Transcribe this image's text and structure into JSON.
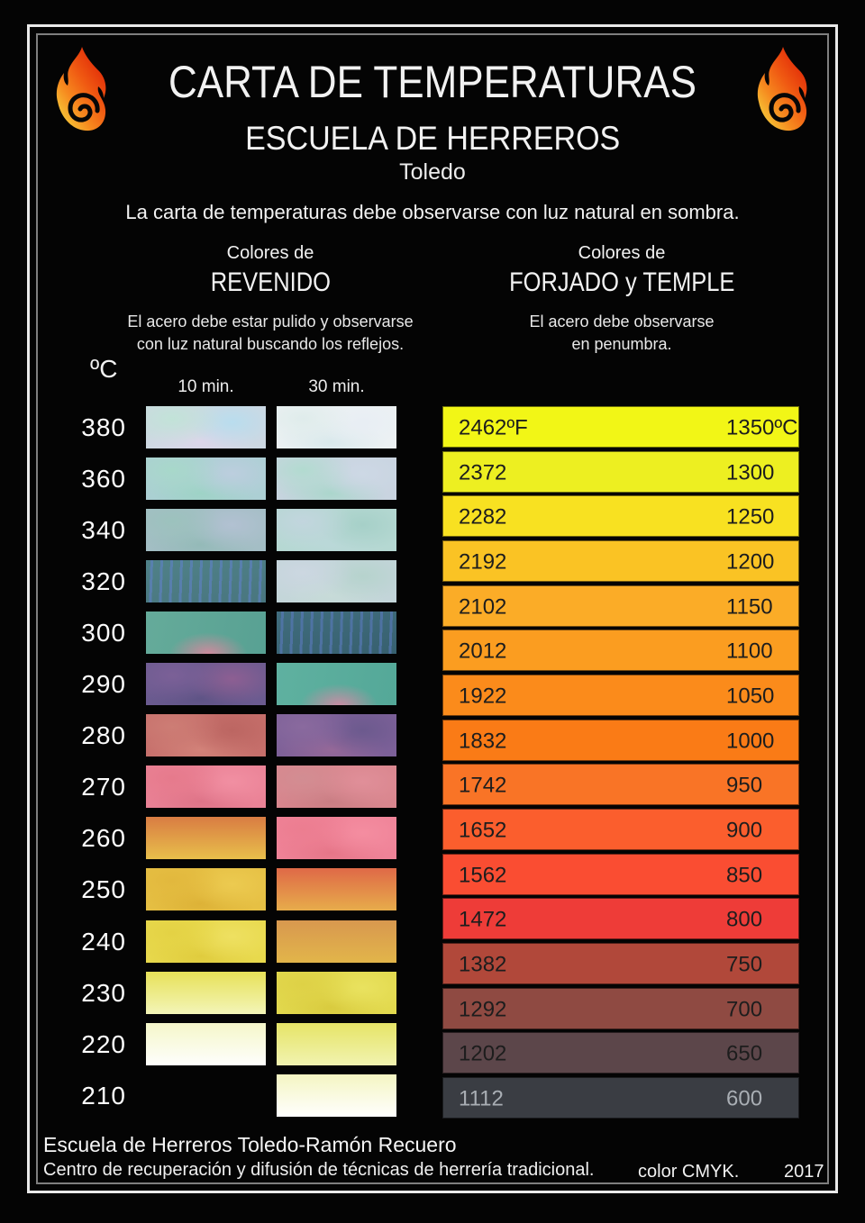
{
  "header": {
    "title": "CARTA DE TEMPERATURAS",
    "subtitle": "ESCUELA DE HERREROS",
    "city": "Toledo",
    "intro": "La carta de temperaturas debe observarse con luz natural en sombra."
  },
  "flame_colors": {
    "red": "#dd1f05",
    "orange": "#f05a12",
    "amber": "#f68b1f",
    "yellow": "#f5d03c"
  },
  "revenido": {
    "heading_small": "Colores de",
    "heading_big": "REVENIDO",
    "desc_line1": "El acero debe estar pulido y observarse",
    "desc_line2": "con luz natural buscando los reflejos.",
    "unit_label": "ºC",
    "col_headers": [
      "10 min.",
      "30 min."
    ],
    "rows": [
      {
        "temp": "380",
        "c10": {
          "type": "mottled",
          "colors": [
            "#cdd8e2",
            "#c2e3d8",
            "#b9ddee",
            "#dcd6ea"
          ]
        },
        "c30": {
          "type": "mottled",
          "colors": [
            "#ecf1f3",
            "#dfeceb",
            "#e8eef4",
            "#d9e9ec"
          ]
        }
      },
      {
        "temp": "360",
        "c10": {
          "type": "mottled",
          "colors": [
            "#accfd4",
            "#a8d8ca",
            "#bccede",
            "#9ed3c6"
          ]
        },
        "c30": {
          "type": "mottled",
          "colors": [
            "#c9d4e0",
            "#b2dbd0",
            "#cdd8e5",
            "#abd6cc"
          ]
        }
      },
      {
        "temp": "340",
        "c10": {
          "type": "mottled",
          "colors": [
            "#a4bec5",
            "#9cc2bd",
            "#b2c1d2",
            "#94bab8"
          ]
        },
        "c30": {
          "type": "mottled",
          "colors": [
            "#b5d8d2",
            "#c2d5de",
            "#a6d0c8",
            "#bad8d8"
          ]
        }
      },
      {
        "temp": "320",
        "c10": {
          "type": "striped",
          "colors": [
            "#4f8188",
            "#49767f",
            "#5c80bd"
          ]
        },
        "c30": {
          "type": "mottled",
          "colors": [
            "#c3d5d9",
            "#ccd7e1",
            "#b6d3cd",
            "#c7dbd8"
          ]
        }
      },
      {
        "temp": "300",
        "c10": {
          "type": "blotch",
          "colors": [
            "#65ab9a",
            "#58a193",
            "#cf8a9d"
          ]
        },
        "c30": {
          "type": "striped",
          "colors": [
            "#406d7e",
            "#37606f",
            "#5577b3"
          ]
        }
      },
      {
        "temp": "290",
        "c10": {
          "type": "mottled",
          "colors": [
            "#6b5b90",
            "#7b6097",
            "#8d5f92",
            "#5f5486"
          ]
        },
        "c30": {
          "type": "blotch",
          "colors": [
            "#5fb1a0",
            "#54a898",
            "#c88da4"
          ]
        }
      },
      {
        "temp": "280",
        "c10": {
          "type": "mottled",
          "colors": [
            "#c66f6b",
            "#cd7d75",
            "#bc6662",
            "#d28279"
          ]
        },
        "c30": {
          "type": "mottled",
          "colors": [
            "#7c6098",
            "#8a6a9e",
            "#6c5a8e",
            "#956898"
          ]
        }
      },
      {
        "temp": "270",
        "c10": {
          "type": "mottled",
          "colors": [
            "#ea8296",
            "#e67a8c",
            "#f18fa2",
            "#de7488"
          ]
        },
        "c30": {
          "type": "mottled",
          "colors": [
            "#d9868e",
            "#d28d92",
            "#e08f99",
            "#ca7e84"
          ]
        }
      },
      {
        "temp": "260",
        "c10": {
          "type": "vgrad",
          "colors": [
            "#d97c43",
            "#e8bf4b"
          ]
        },
        "c30": {
          "type": "mottled",
          "colors": [
            "#ef8398",
            "#ec7d90",
            "#f48da0",
            "#e67688"
          ]
        }
      },
      {
        "temp": "250",
        "c10": {
          "type": "mottled",
          "colors": [
            "#e6c044",
            "#e2b83d",
            "#ecca50",
            "#ddb237"
          ]
        },
        "c30": {
          "type": "vgrad",
          "colors": [
            "#df6947",
            "#e7ac4b"
          ]
        }
      },
      {
        "temp": "240",
        "c10": {
          "type": "mottled",
          "colors": [
            "#e8d94d",
            "#e4d244",
            "#eee061",
            "#e0cc3e"
          ]
        },
        "c30": {
          "type": "vgrad",
          "colors": [
            "#d8984f",
            "#e2b54a"
          ]
        }
      },
      {
        "temp": "230",
        "c10": {
          "type": "vgrad",
          "colors": [
            "#e7e158",
            "#f3f5b8"
          ]
        },
        "c30": {
          "type": "mottled",
          "colors": [
            "#e2d94e",
            "#ded146",
            "#e9e25f",
            "#d9cb3f"
          ]
        }
      },
      {
        "temp": "220",
        "c10": {
          "type": "vgrad",
          "colors": [
            "#f5f7c9",
            "#fefefd"
          ]
        },
        "c30": {
          "type": "vgrad",
          "colors": [
            "#e6e467",
            "#f1f3b0"
          ]
        }
      },
      {
        "temp": "210",
        "c10": null,
        "c30": {
          "type": "vgrad",
          "colors": [
            "#f4f5c2",
            "#fffffe"
          ]
        }
      }
    ]
  },
  "forjado": {
    "heading_small": "Colores de",
    "heading_big": "FORJADO y TEMPLE",
    "desc_line1": "El acero debe observarse",
    "desc_line2": "en penumbra.",
    "bars": [
      {
        "f": "2462ºF",
        "c": "1350ºC",
        "color": "#f2f616",
        "text": "#1d1d1d"
      },
      {
        "f": "2372",
        "c": "1300",
        "color": "#edef21",
        "text": "#1d1d1d"
      },
      {
        "f": "2282",
        "c": "1250",
        "color": "#f8e121",
        "text": "#1d1d1d"
      },
      {
        "f": "2192",
        "c": "1200",
        "color": "#fac324",
        "text": "#1d1d1d"
      },
      {
        "f": "2102",
        "c": "1150",
        "color": "#fbac27",
        "text": "#1d1d1d"
      },
      {
        "f": "2012",
        "c": "1100",
        "color": "#fb9d20",
        "text": "#1d1d1d"
      },
      {
        "f": "1922",
        "c": "1050",
        "color": "#fb8b1b",
        "text": "#1d1d1d"
      },
      {
        "f": "1832",
        "c": "1000",
        "color": "#fa7b16",
        "text": "#1d1d1d"
      },
      {
        "f": "1742",
        "c": "950",
        "color": "#f97426",
        "text": "#1d1d1d"
      },
      {
        "f": "1652",
        "c": "900",
        "color": "#fb5e2d",
        "text": "#1d1d1d"
      },
      {
        "f": "1562",
        "c": "850",
        "color": "#fa4d32",
        "text": "#1d1d1d"
      },
      {
        "f": "1472",
        "c": "800",
        "color": "#ee3c38",
        "text": "#1d1d1d"
      },
      {
        "f": "1382",
        "c": "750",
        "color": "#b1483a",
        "text": "#1d1d1d"
      },
      {
        "f": "1292",
        "c": "700",
        "color": "#8f4a42",
        "text": "#1d1d1d"
      },
      {
        "f": "1202",
        "c": "650",
        "color": "#5c464a",
        "text": "#1d1d1d"
      },
      {
        "f": "1112",
        "c": "600",
        "color": "#3a3d43",
        "text": "#a9aeb4"
      }
    ]
  },
  "footer": {
    "line1": "Escuela de Herreros Toledo-Ramón Recuero",
    "line2": "Centro de recuperación y difusión de técnicas de herrería tradicional.",
    "color_note": "color CMYK.",
    "year": "2017"
  }
}
